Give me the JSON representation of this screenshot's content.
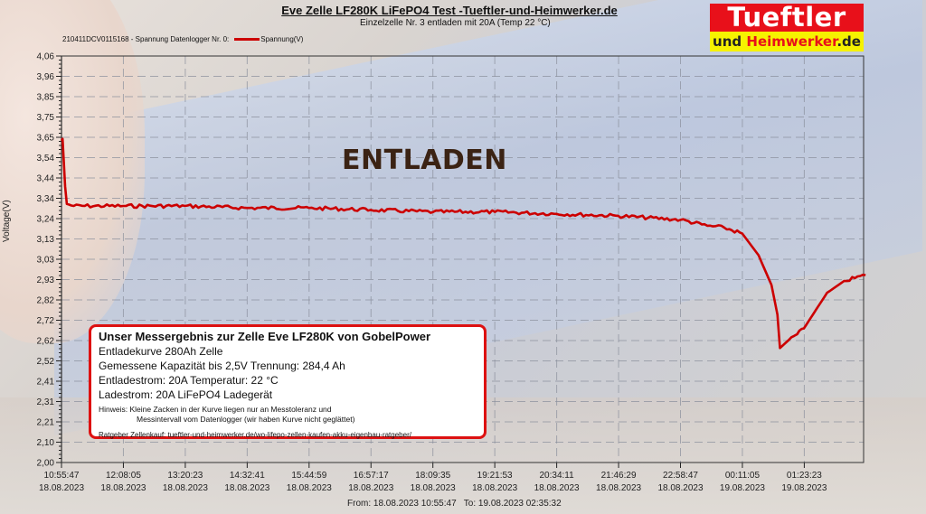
{
  "header": {
    "title": "Eve Zelle LF280K LiFePO4 Test -Tueftler-und-Heimwerker.de",
    "subtitle": "Einzelzelle Nr. 3 entladen mit 20A (Temp 22 °C)",
    "legend_prefix": "210411DCV0115168 - Spannung Datenlogger Nr. 0:",
    "legend_series": "Spannung(V)"
  },
  "logo": {
    "top": "Tueftler",
    "und": "und",
    "heim": "Heimwerker",
    "de": ".de"
  },
  "overlay_label": "ENTLADEN",
  "axis": {
    "ylabel": "Voltage(V)",
    "range_from": "From: 18.08.2023 10:55:47",
    "range_to": "To: 19.08.2023 02:35:32"
  },
  "colors": {
    "series": "#cc0000",
    "infobox_border": "#dd1111",
    "logo_red": "#e8101a",
    "logo_yellow": "#f6f200"
  },
  "infobox": {
    "heading": "Unser Messergebnis  zur Zelle Eve LF280K von GobelPower",
    "line1": "Entladekurve 280Ah Zelle",
    "line2": "Gemessene Kapazität bis 2,5V Trennung: 284,4 Ah",
    "line3": "Entladestrom: 20A  Temperatur: 22 °C",
    "line4": "Ladestrom: 20A LiFePO4 Ladegerät",
    "note1": "Hinweis: Kleine Zacken in der Kurve liegen nur an Messtoleranz und",
    "note2": "Messintervall vom Datenlogger (wir haben Kurve nicht geglättet)",
    "link": "Ratgeber Zellenkauf: tueftler-und-heimwerker.de/wo-lifepo-zellen-kaufen-akku-eigenbau-ratgeber/"
  },
  "chart_data": {
    "type": "line",
    "title": "Eve Zelle LF280K LiFePO4 Test -Tueftler-und-Heimwerker.de",
    "subtitle": "Einzelzelle Nr. 3 entladen mit 20A (Temp 22 °C)",
    "xlabel": "",
    "ylabel": "Voltage(V)",
    "ylim": [
      2.0,
      4.06
    ],
    "grid": true,
    "legend_position": "top-left",
    "y_ticks": [
      "4,06",
      "3,96",
      "3,85",
      "3,75",
      "3,65",
      "3,54",
      "3,44",
      "3,34",
      "3,24",
      "3,13",
      "3,03",
      "2,93",
      "2,82",
      "2,72",
      "2,62",
      "2,52",
      "2,41",
      "2,31",
      "2,21",
      "2,10",
      "2,00"
    ],
    "x_ticks": [
      {
        "time": "10:55:47",
        "date": "18.08.2023"
      },
      {
        "time": "12:08:05",
        "date": "18.08.2023"
      },
      {
        "time": "13:20:23",
        "date": "18.08.2023"
      },
      {
        "time": "14:32:41",
        "date": "18.08.2023"
      },
      {
        "time": "15:44:59",
        "date": "18.08.2023"
      },
      {
        "time": "16:57:17",
        "date": "18.08.2023"
      },
      {
        "time": "18:09:35",
        "date": "18.08.2023"
      },
      {
        "time": "19:21:53",
        "date": "18.08.2023"
      },
      {
        "time": "20:34:11",
        "date": "18.08.2023"
      },
      {
        "time": "21:46:29",
        "date": "18.08.2023"
      },
      {
        "time": "22:58:47",
        "date": "18.08.2023"
      },
      {
        "time": "00:11:05",
        "date": "19.08.2023"
      },
      {
        "time": "01:23:23",
        "date": "19.08.2023"
      }
    ],
    "series": [
      {
        "name": "Spannung(V)",
        "color": "#cc0000",
        "x": [
          "10:55:47",
          "10:57",
          "11:00",
          "11:02",
          "11:10",
          "12:08",
          "13:20",
          "14:32",
          "15:45",
          "16:57",
          "18:10",
          "19:22",
          "20:34",
          "21:46",
          "22:59",
          "23:30",
          "23:50",
          "00:11",
          "00:30",
          "00:45",
          "00:52",
          "00:55",
          "01:05",
          "01:15",
          "01:23",
          "01:35",
          "01:50",
          "02:10",
          "02:35"
        ],
        "values": [
          3.63,
          3.64,
          3.4,
          3.31,
          3.3,
          3.3,
          3.3,
          3.29,
          3.29,
          3.28,
          3.27,
          3.27,
          3.26,
          3.25,
          3.23,
          3.2,
          3.19,
          3.16,
          3.05,
          2.9,
          2.75,
          2.58,
          2.62,
          2.65,
          2.68,
          2.76,
          2.86,
          2.92,
          2.95
        ]
      }
    ]
  }
}
